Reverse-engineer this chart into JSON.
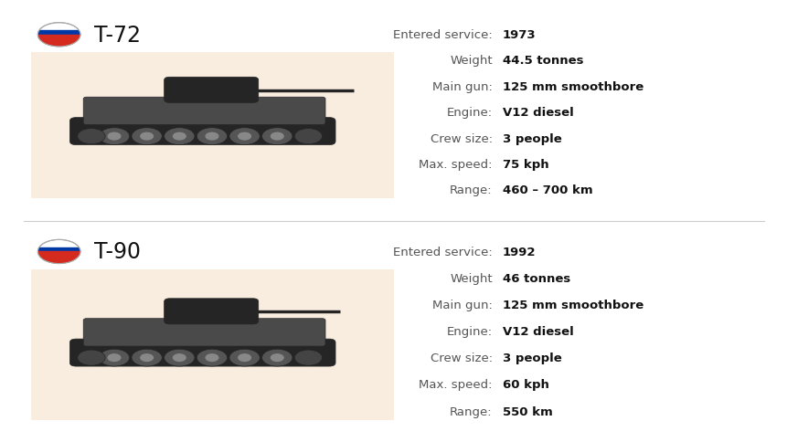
{
  "bg_color": "#ffffff",
  "divider_color": "#cccccc",
  "tank_bg_color": "#f9ede0",
  "label_color": "#555555",
  "value_color": "#111111",
  "title_color": "#111111",
  "tanks": [
    {
      "name": "T-72",
      "specs": [
        {
          "label": "Entered service:",
          "value": "1973"
        },
        {
          "label": "Weight",
          "value": "44.5 tonnes"
        },
        {
          "label": "Main gun:",
          "value": "125 mm smoothbore"
        },
        {
          "label": "Engine:",
          "value": "V12 diesel"
        },
        {
          "label": "Crew size:",
          "value": "3 people"
        },
        {
          "label": "Max. speed:",
          "value": "75 kph"
        },
        {
          "label": "Range:",
          "value": "460 – 700 km"
        }
      ]
    },
    {
      "name": "T-90",
      "specs": [
        {
          "label": "Entered service:",
          "value": "1992"
        },
        {
          "label": "Weight",
          "value": "46 tonnes"
        },
        {
          "label": "Main gun:",
          "value": "125 mm smoothbore"
        },
        {
          "label": "Engine:",
          "value": "V12 diesel"
        },
        {
          "label": "Crew size:",
          "value": "3 people"
        },
        {
          "label": "Max. speed:",
          "value": "60 kph"
        },
        {
          "label": "Range:",
          "value": "550 km"
        }
      ]
    }
  ],
  "flag_white": "#ffffff",
  "flag_blue": "#0039a6",
  "flag_red": "#d52b1e",
  "flag_border": "#aaaaaa"
}
